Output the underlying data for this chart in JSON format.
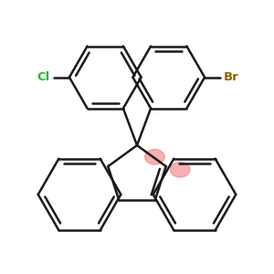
{
  "bg_color": "#ffffff",
  "bond_color": "#1a1a1a",
  "bond_width": 1.8,
  "cl_color": "#2db82d",
  "br_color": "#8B6300",
  "highlight_color": "#f08080",
  "highlight_alpha": 0.6,
  "cl_label": "Cl",
  "br_label": "Br"
}
